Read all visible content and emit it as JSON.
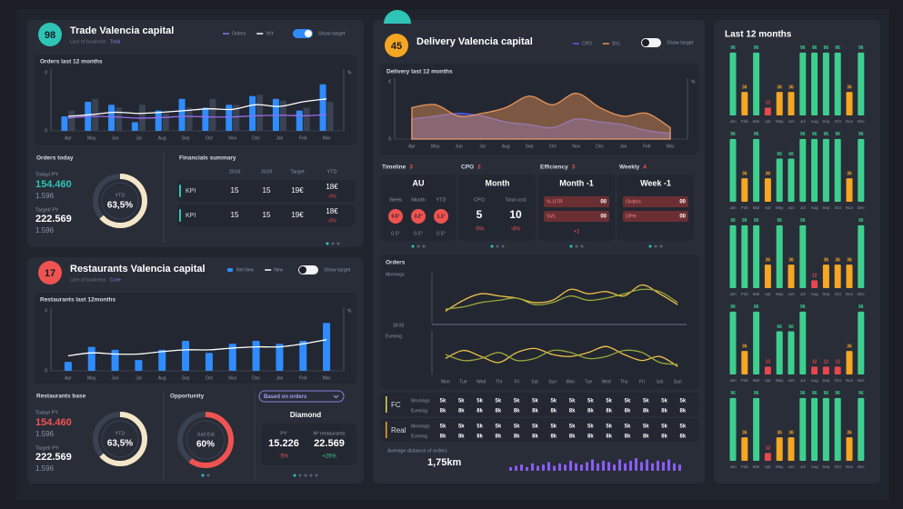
{
  "trade": {
    "badge": "98",
    "title": "Trade Valencia capital",
    "business_label": "Line of business",
    "business": "Total",
    "toggle": "Show target",
    "chart": {
      "type": "bar",
      "title": "Orders last 12 months",
      "y_label": "#",
      "y2_label": "%",
      "categories": [
        "Apr",
        "May",
        "Jun",
        "Jul",
        "Aug",
        "Sep",
        "Oct",
        "Nov",
        "Dec",
        "Jan",
        "Feb",
        "Mar"
      ],
      "ylim": [
        0,
        100
      ],
      "yticks": [
        0
      ],
      "series": [
        {
          "name": "Orders",
          "type": "line",
          "color": "#9b6cf0",
          "values": [
            22,
            25,
            24,
            22,
            23,
            25,
            24,
            24,
            26,
            27,
            26,
            28
          ]
        },
        {
          "name": "YoY",
          "type": "line",
          "color": "#ffffff",
          "values": [
            25,
            28,
            32,
            30,
            32,
            35,
            38,
            37,
            45,
            42,
            50,
            55
          ]
        },
        {
          "type": "bar",
          "color": "#2f8cff",
          "values": [
            25,
            50,
            45,
            15,
            35,
            55,
            40,
            45,
            60,
            55,
            35,
            80
          ]
        },
        {
          "type": "bar",
          "color": "#3b4252",
          "values": [
            35,
            55,
            40,
            45,
            30,
            40,
            55,
            45,
            62,
            52,
            40,
            50
          ]
        }
      ]
    },
    "summary": {
      "title": "Orders today",
      "today_label": "Today/ PY",
      "today": "154.460",
      "today_py": "1.596",
      "target_label": "Target/ PY",
      "target": "222.569",
      "target_py": "1.596",
      "donut": {
        "label": "YTD",
        "value": 63.5,
        "value_label": "63,5%"
      }
    },
    "financials": {
      "title": "Financials summary",
      "headers": [
        "2018",
        "2019",
        "Target",
        "YTD"
      ],
      "rows": [
        {
          "label": "KPI",
          "cells": [
            "15",
            "15",
            "19€",
            "18€"
          ],
          "change": "-5%"
        },
        {
          "label": "KPI",
          "cells": [
            "15",
            "15",
            "19€",
            "18€"
          ],
          "change": "-5%"
        }
      ]
    }
  },
  "restaurants": {
    "badge": "17",
    "title": "Restaurants Valencia capital",
    "business_label": "Line of business",
    "business": "Core",
    "toggle": "Show target",
    "chart": {
      "type": "bar",
      "title": "Restaurants last 12months",
      "categories": [
        "Apr",
        "May",
        "Jun",
        "Jul",
        "Aug",
        "Sep",
        "Oct",
        "Nov",
        "Dec",
        "Jan",
        "Feb",
        "Mar"
      ],
      "ylim": [
        0,
        100
      ],
      "yticks": [
        0
      ],
      "y_label": "#",
      "y2_label": "%",
      "series": [
        {
          "name": "Net New",
          "type": "bar",
          "color": "#2f8cff",
          "values": [
            15,
            40,
            35,
            18,
            35,
            50,
            30,
            45,
            50,
            45,
            50,
            80
          ]
        },
        {
          "name": "New",
          "type": "line",
          "color": "#ffffff",
          "values": [
            25,
            30,
            28,
            28,
            32,
            35,
            35,
            38,
            40,
            40,
            45,
            52
          ]
        }
      ]
    },
    "summary": {
      "title": "Restaurants base",
      "today_label": "Today/ PY",
      "today": "154.460",
      "today_py": "1.596",
      "target_label": "Target/ PY",
      "target": "222.569",
      "target_py": "1.596",
      "donut": {
        "label": "YTD",
        "value": 63.5,
        "value_label": "63,5%"
      }
    },
    "opportunity": {
      "title": "Opportunity",
      "donut": {
        "label": "Just Eat",
        "value": 60,
        "value_label": "60%"
      }
    },
    "segment": {
      "dropdown": "Based on orders",
      "title": "Diamond",
      "stats": [
        {
          "label": "PY",
          "value": "15.226",
          "change": "-5%"
        },
        {
          "label": "Nº restaurants",
          "value": "22.569",
          "change": "+25%"
        }
      ]
    }
  },
  "delivery": {
    "badge": "45",
    "title": "Delivery Valencia capital",
    "toggle": "Show target",
    "chart": {
      "type": "area",
      "title": "Delivery last 12 months",
      "y_label": "€",
      "y2_label": "%",
      "categories": [
        "Apr",
        "May",
        "Jun",
        "Jul",
        "Aug",
        "Sep",
        "Oct",
        "Nov",
        "Dec",
        "Jan",
        "Feb",
        "Mar"
      ],
      "ylim": [
        0,
        100
      ],
      "yticks": [
        0
      ],
      "series": [
        {
          "name": "CPO",
          "type": "area",
          "color": "#5563f0",
          "values": [
            35,
            40,
            45,
            40,
            30,
            25,
            20,
            35,
            30,
            25,
            15,
            10
          ]
        },
        {
          "name": "SVL",
          "type": "area",
          "color": "#e8955a",
          "values": [
            55,
            60,
            40,
            45,
            55,
            75,
            60,
            80,
            55,
            40,
            45,
            20
          ]
        }
      ]
    },
    "cards": [
      {
        "title": "Timeline",
        "count": "3",
        "heading": "AU",
        "columns": [
          "Week",
          "Month",
          "YTD"
        ],
        "badges": [
          "0.5°",
          "3.2°",
          "1.1°"
        ],
        "footers": [
          "0.5°",
          "0.5°",
          "0.5°"
        ]
      },
      {
        "title": "CPO",
        "count": "2",
        "heading": "Month",
        "columns": [
          "CPO",
          "Total cost"
        ],
        "values": [
          "5",
          "10"
        ],
        "changes": [
          "-5%",
          "-8%"
        ]
      },
      {
        "title": "Efficiency",
        "count": "3",
        "heading": "Month -1",
        "rows": [
          [
            "% UTR",
            "00"
          ],
          [
            "SVL",
            "00"
          ]
        ],
        "change": "+2"
      },
      {
        "title": "Weekly",
        "count": "4",
        "heading": "Week -1",
        "rows": [
          [
            "Orders",
            "00"
          ],
          [
            "DPH",
            "00"
          ]
        ]
      }
    ],
    "orders": {
      "title": "Orders",
      "split_label": "18:00",
      "categories": [
        "Mon",
        "Tue",
        "Wed",
        "Thr",
        "Fri",
        "Sat",
        "Sun",
        "Mon",
        "Tue",
        "Wed",
        "Thu",
        "Fri",
        "Sat",
        "Sun"
      ],
      "panels": [
        {
          "label": "Mornings",
          "ylim": [
            0,
            100
          ],
          "series": [
            {
              "type": "line",
              "color": "#f0c14b",
              "values": [
                20,
                45,
                60,
                55,
                50,
                40,
                45,
                70,
                60,
                65,
                55,
                80,
                60,
                35
              ]
            },
            {
              "type": "line",
              "color": "#9aa83a",
              "values": [
                25,
                30,
                40,
                45,
                50,
                35,
                40,
                55,
                45,
                50,
                60,
                70,
                65,
                40
              ]
            }
          ]
        },
        {
          "label": "Evening",
          "ylim": [
            0,
            100
          ],
          "series": [
            {
              "type": "line",
              "color": "#f0c14b",
              "values": [
                40,
                60,
                45,
                30,
                55,
                65,
                50,
                45,
                55,
                70,
                50,
                35,
                45,
                20
              ]
            },
            {
              "type": "line",
              "color": "#9aa83a",
              "values": [
                50,
                35,
                40,
                55,
                35,
                40,
                60,
                55,
                40,
                45,
                60,
                55,
                30,
                25
              ]
            }
          ]
        }
      ]
    },
    "forecast": [
      {
        "label": "FC",
        "color": "#e6d35a",
        "rows": [
          {
            "name": "Mornings",
            "cells": [
              "5k",
              "5k",
              "5k",
              "5k",
              "5k",
              "5k",
              "5k",
              "5k",
              "5k",
              "5k",
              "5k",
              "5k",
              "5k",
              "5k"
            ]
          },
          {
            "name": "Evening",
            "cells": [
              "8k",
              "8k",
              "8k",
              "8k",
              "8k",
              "8k",
              "8k",
              "8k",
              "8k",
              "8k",
              "8k",
              "8k",
              "8k",
              "8k"
            ]
          }
        ]
      },
      {
        "label": "Real",
        "color": "#f5a623",
        "rows": [
          {
            "name": "Mornings",
            "cells": [
              "5k",
              "5k",
              "5k",
              "5k",
              "5k",
              "5k",
              "5k",
              "5k",
              "5k",
              "5k",
              "5k",
              "5k",
              "5k",
              "5k"
            ]
          },
          {
            "name": "Evening",
            "cells": [
              "8k",
              "8k",
              "8k",
              "8k",
              "8k",
              "8k",
              "8k",
              "8k",
              "8k",
              "8k",
              "8k",
              "8k",
              "8k",
              "8k"
            ]
          }
        ]
      }
    ],
    "distance": {
      "label": "Average distance of orders",
      "value": "1,75km",
      "color": "#8b5cf6",
      "ylim": [
        0,
        10
      ],
      "values": [
        3,
        4,
        5,
        3,
        6,
        4,
        5,
        7,
        4,
        6,
        5,
        8,
        6,
        5,
        7,
        9,
        6,
        8,
        7,
        5,
        9,
        6,
        8,
        10,
        7,
        9,
        6,
        8,
        7,
        9,
        6,
        5
      ]
    }
  },
  "last12": {
    "title": "Last 12 months",
    "categories": [
      "Jan",
      "Feb",
      "Mar",
      "Apr",
      "May",
      "Jun",
      "Jul",
      "Aug",
      "Sep",
      "Oct",
      "Nov",
      "Dec"
    ],
    "ylim": [
      0,
      100
    ],
    "charts": [
      {
        "values": [
          96,
          36,
          96,
          12,
          36,
          36,
          96,
          96,
          96,
          96,
          36,
          96
        ],
        "colors": [
          "#3ecf8e",
          "#f5a623",
          "#3ecf8e",
          "#e5484d",
          "#f5a623",
          "#f5a623",
          "#3ecf8e",
          "#3ecf8e",
          "#3ecf8e",
          "#3ecf8e",
          "#f5a623",
          "#3ecf8e"
        ]
      },
      {
        "values": [
          96,
          36,
          96,
          36,
          66,
          66,
          96,
          96,
          96,
          96,
          36,
          96
        ],
        "colors": [
          "#3ecf8e",
          "#f5a623",
          "#3ecf8e",
          "#f5a623",
          "#3ecf8e",
          "#3ecf8e",
          "#3ecf8e",
          "#3ecf8e",
          "#3ecf8e",
          "#3ecf8e",
          "#f5a623",
          "#3ecf8e"
        ]
      },
      {
        "values": [
          96,
          96,
          96,
          36,
          96,
          36,
          96,
          12,
          36,
          36,
          36,
          96
        ],
        "colors": [
          "#3ecf8e",
          "#3ecf8e",
          "#3ecf8e",
          "#f5a623",
          "#3ecf8e",
          "#f5a623",
          "#3ecf8e",
          "#e5484d",
          "#f5a623",
          "#f5a623",
          "#f5a623",
          "#3ecf8e"
        ]
      },
      {
        "values": [
          96,
          36,
          96,
          12,
          66,
          66,
          96,
          12,
          12,
          12,
          36,
          96
        ],
        "colors": [
          "#3ecf8e",
          "#f5a623",
          "#3ecf8e",
          "#e5484d",
          "#3ecf8e",
          "#3ecf8e",
          "#3ecf8e",
          "#e5484d",
          "#e5484d",
          "#e5484d",
          "#f5a623",
          "#3ecf8e"
        ]
      },
      {
        "values": [
          96,
          36,
          96,
          12,
          36,
          36,
          96,
          96,
          96,
          96,
          36,
          96
        ],
        "colors": [
          "#3ecf8e",
          "#f5a623",
          "#3ecf8e",
          "#e5484d",
          "#f5a623",
          "#f5a623",
          "#3ecf8e",
          "#3ecf8e",
          "#3ecf8e",
          "#3ecf8e",
          "#f5a623",
          "#3ecf8e"
        ]
      }
    ]
  }
}
